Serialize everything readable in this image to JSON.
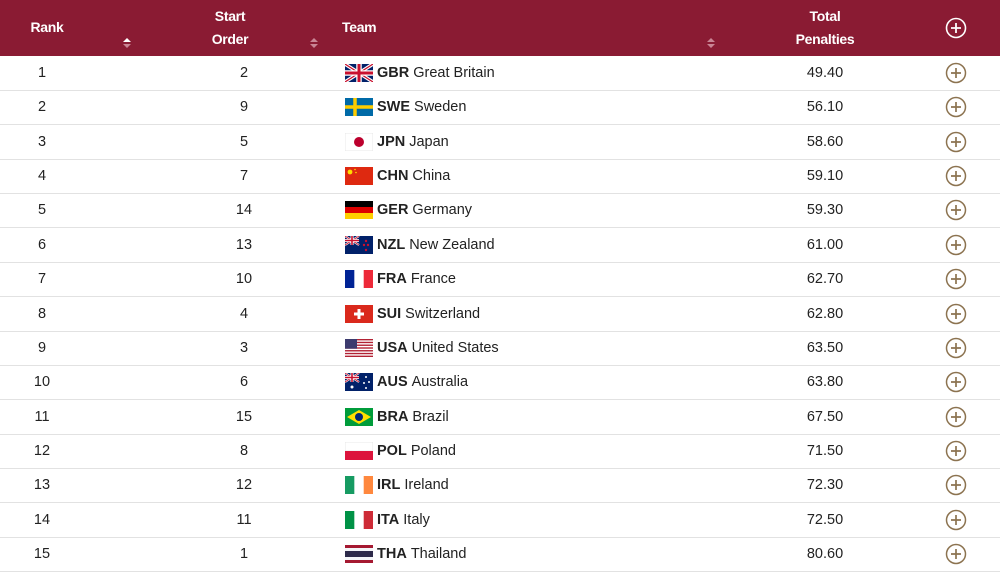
{
  "header": {
    "columns": [
      "Rank",
      "Start Order",
      "Team",
      "Total Penalties"
    ]
  },
  "table": {
    "rows": [
      {
        "rank": 1,
        "start": 2,
        "code": "GBR",
        "name": "Great Britain",
        "penalties": "49.40"
      },
      {
        "rank": 2,
        "start": 9,
        "code": "SWE",
        "name": "Sweden",
        "penalties": "56.10"
      },
      {
        "rank": 3,
        "start": 5,
        "code": "JPN",
        "name": "Japan",
        "penalties": "58.60"
      },
      {
        "rank": 4,
        "start": 7,
        "code": "CHN",
        "name": "China",
        "penalties": "59.10"
      },
      {
        "rank": 5,
        "start": 14,
        "code": "GER",
        "name": "Germany",
        "penalties": "59.30"
      },
      {
        "rank": 6,
        "start": 13,
        "code": "NZL",
        "name": "New Zealand",
        "penalties": "61.00"
      },
      {
        "rank": 7,
        "start": 10,
        "code": "FRA",
        "name": "France",
        "penalties": "62.70"
      },
      {
        "rank": 8,
        "start": 4,
        "code": "SUI",
        "name": "Switzerland",
        "penalties": "62.80"
      },
      {
        "rank": 9,
        "start": 3,
        "code": "USA",
        "name": "United States",
        "penalties": "63.50"
      },
      {
        "rank": 10,
        "start": 6,
        "code": "AUS",
        "name": "Australia",
        "penalties": "63.80"
      },
      {
        "rank": 11,
        "start": 15,
        "code": "BRA",
        "name": "Brazil",
        "penalties": "67.50"
      },
      {
        "rank": 12,
        "start": 8,
        "code": "POL",
        "name": "Poland",
        "penalties": "71.50"
      },
      {
        "rank": 13,
        "start": 12,
        "code": "IRL",
        "name": "Ireland",
        "penalties": "72.30"
      },
      {
        "rank": 14,
        "start": 11,
        "code": "ITA",
        "name": "Italy",
        "penalties": "72.50"
      },
      {
        "rank": 15,
        "start": 1,
        "code": "THA",
        "name": "Thailand",
        "penalties": "80.60"
      }
    ]
  }
}
